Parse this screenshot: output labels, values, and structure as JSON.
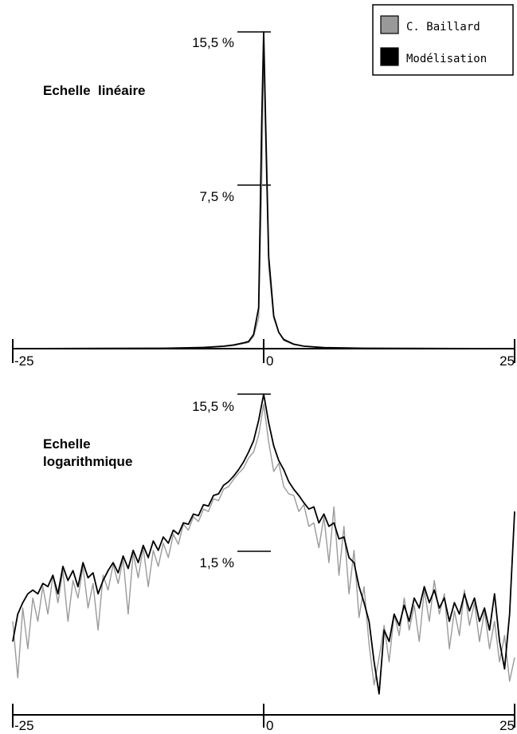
{
  "legend": {
    "items": [
      {
        "label": "C. Baillard",
        "color": "#999999"
      },
      {
        "label": "Modélisation",
        "color": "#000000"
      }
    ]
  },
  "colors": {
    "baillard": "#9a9a9a",
    "model": "#000000",
    "axis": "#000000"
  },
  "chart_data": [
    {
      "type": "line",
      "title": "Echelle  linéaire",
      "scale": "linear",
      "x_ticks": [
        "-25",
        "0",
        "25"
      ],
      "xlim": [
        -25,
        25
      ],
      "y_ticks": [
        "15,5 %",
        "7,5 %"
      ],
      "y_tick_values": [
        15.5,
        7.5
      ],
      "ylim": [
        0,
        15.5
      ],
      "series": [
        {
          "name": "C. Baillard",
          "x": [
            -25,
            -10,
            -6,
            -4,
            -3,
            -2,
            -1.5,
            -1,
            -0.5,
            -0.2,
            0,
            0.2,
            0.5,
            1,
            1.5,
            2,
            3,
            4,
            6,
            10,
            25
          ],
          "y": [
            0,
            0.02,
            0.05,
            0.1,
            0.15,
            0.25,
            0.3,
            0.6,
            1.5,
            8,
            14.5,
            10,
            4,
            1.5,
            0.8,
            0.4,
            0.2,
            0.12,
            0.05,
            0.02,
            0
          ]
        },
        {
          "name": "Modélisation",
          "x": [
            -25,
            -10,
            -6,
            -4,
            -3,
            -2,
            -1.5,
            -1,
            -0.5,
            -0.2,
            0,
            0.2,
            0.5,
            1,
            1.5,
            2,
            3,
            4,
            6,
            10,
            25
          ],
          "y": [
            0,
            0.02,
            0.06,
            0.12,
            0.18,
            0.28,
            0.35,
            0.7,
            2,
            11,
            15.5,
            11,
            4.5,
            1.6,
            0.8,
            0.45,
            0.22,
            0.12,
            0.05,
            0.02,
            0
          ]
        }
      ]
    },
    {
      "type": "line",
      "title": "Echelle logarithmique",
      "scale": "log",
      "x_ticks": [
        "-25",
        "0",
        "25"
      ],
      "xlim": [
        -25,
        25
      ],
      "y_ticks": [
        "15,5 %",
        "1,5 %"
      ],
      "y_tick_values": [
        15.5,
        1.5
      ],
      "ylim": [
        0.006,
        15.5
      ],
      "series": [
        {
          "name": "C. Baillard",
          "x": [
            -25,
            -24.5,
            -24,
            -23.5,
            -23,
            -22.5,
            -22,
            -21.5,
            -21,
            -20.5,
            -20,
            -19.5,
            -19,
            -18.5,
            -18,
            -17.5,
            -17,
            -16.5,
            -16,
            -15.5,
            -15,
            -14.5,
            -14,
            -13.5,
            -13,
            -12.5,
            -12,
            -11.5,
            -11,
            -10.5,
            -10,
            -9.5,
            -9,
            -8.5,
            -8,
            -7.5,
            -7,
            -6.5,
            -6,
            -5.5,
            -5,
            -4.5,
            -4,
            -3.5,
            -3,
            -2.5,
            -2,
            -1.5,
            -1,
            -0.5,
            0,
            0.5,
            1,
            1.5,
            2,
            2.5,
            3,
            3.5,
            4,
            4.5,
            5,
            5.5,
            6,
            6.5,
            7,
            7.5,
            8,
            8.5,
            9,
            9.5,
            10,
            10.5,
            11,
            11.5,
            12,
            12.5,
            13,
            13.5,
            14,
            14.5,
            15,
            15.5,
            16,
            16.5,
            17,
            17.5,
            18,
            18.5,
            19,
            19.5,
            20,
            20.5,
            21,
            21.5,
            22,
            22.5,
            23,
            23.5,
            24,
            24.5,
            25
          ],
          "y": [
            0.05,
            0.012,
            0.07,
            0.025,
            0.09,
            0.05,
            0.12,
            0.06,
            0.16,
            0.08,
            0.18,
            0.05,
            0.14,
            0.09,
            0.2,
            0.07,
            0.13,
            0.04,
            0.16,
            0.11,
            0.21,
            0.13,
            0.24,
            0.06,
            0.28,
            0.15,
            0.32,
            0.12,
            0.3,
            0.2,
            0.36,
            0.25,
            0.45,
            0.35,
            0.58,
            0.5,
            0.7,
            0.62,
            0.85,
            0.8,
            1.1,
            1.05,
            1.4,
            1.5,
            1.8,
            2.1,
            2.4,
            3.1,
            3.6,
            5.5,
            12,
            4.6,
            2.2,
            2.7,
            1.5,
            1.25,
            1.2,
            0.8,
            0.95,
            0.55,
            0.6,
            0.32,
            0.7,
            0.22,
            0.9,
            0.16,
            0.55,
            0.1,
            0.3,
            0.055,
            0.12,
            0.028,
            0.01,
            0.02,
            0.045,
            0.018,
            0.06,
            0.035,
            0.09,
            0.04,
            0.075,
            0.03,
            0.11,
            0.05,
            0.14,
            0.06,
            0.1,
            0.025,
            0.065,
            0.035,
            0.11,
            0.045,
            0.08,
            0.03,
            0.065,
            0.025,
            0.05,
            0.018,
            0.035,
            0.011,
            0.02
          ]
        },
        {
          "name": "Modélisation",
          "x": [
            -25,
            -24.5,
            -24,
            -23.5,
            -23,
            -22.5,
            -22,
            -21.5,
            -21,
            -20.5,
            -20,
            -19.5,
            -19,
            -18.5,
            -18,
            -17.5,
            -17,
            -16.5,
            -16,
            -15.5,
            -15,
            -14.5,
            -14,
            -13.5,
            -13,
            -12.5,
            -12,
            -11.5,
            -11,
            -10.5,
            -10,
            -9.5,
            -9,
            -8.5,
            -8,
            -7.5,
            -7,
            -6.5,
            -6,
            -5.5,
            -5,
            -4.5,
            -4,
            -3.5,
            -3,
            -2.5,
            -2,
            -1.5,
            -1,
            -0.5,
            0,
            0.5,
            1,
            1.5,
            2,
            2.5,
            3,
            3.5,
            4,
            4.5,
            5,
            5.5,
            6,
            6.5,
            7,
            7.5,
            8,
            8.5,
            9,
            9.5,
            10,
            10.5,
            11,
            11.5,
            12,
            12.5,
            13,
            13.5,
            14,
            14.5,
            15,
            15.5,
            16,
            16.5,
            17,
            17.5,
            18,
            18.5,
            19,
            19.5,
            20,
            20.5,
            21,
            21.5,
            22,
            22.5,
            23,
            23.5,
            24,
            24.5,
            25
          ],
          "y": [
            0.03,
            0.06,
            0.08,
            0.1,
            0.11,
            0.1,
            0.13,
            0.12,
            0.16,
            0.1,
            0.2,
            0.14,
            0.18,
            0.12,
            0.22,
            0.15,
            0.17,
            0.1,
            0.14,
            0.18,
            0.22,
            0.17,
            0.26,
            0.19,
            0.3,
            0.22,
            0.34,
            0.25,
            0.38,
            0.3,
            0.42,
            0.36,
            0.5,
            0.45,
            0.6,
            0.58,
            0.75,
            0.72,
            0.95,
            0.92,
            1.2,
            1.25,
            1.55,
            1.7,
            1.95,
            2.3,
            2.8,
            3.6,
            4.8,
            8,
            15.5,
            7.5,
            4.2,
            2.9,
            2.3,
            1.7,
            1.4,
            1.2,
            1,
            0.85,
            0.9,
            0.6,
            0.75,
            0.55,
            0.6,
            0.4,
            0.42,
            0.25,
            0.22,
            0.12,
            0.08,
            0.05,
            0.018,
            0.008,
            0.04,
            0.03,
            0.06,
            0.045,
            0.075,
            0.05,
            0.09,
            0.07,
            0.12,
            0.08,
            0.11,
            0.07,
            0.09,
            0.05,
            0.08,
            0.06,
            0.1,
            0.065,
            0.09,
            0.05,
            0.07,
            0.04,
            0.1,
            0.03,
            0.015,
            0.06,
            0.8
          ]
        }
      ]
    }
  ]
}
